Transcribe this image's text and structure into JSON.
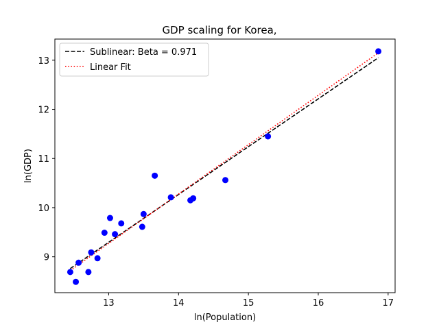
{
  "chart_data": {
    "type": "scatter",
    "title": "GDP scaling for Korea,",
    "xlabel": "ln(Population)",
    "ylabel": "ln(GDP)",
    "xlim": [
      12.23,
      17.1
    ],
    "ylim": [
      8.27,
      13.43
    ],
    "xticks": [
      13,
      14,
      15,
      16,
      17
    ],
    "yticks": [
      9,
      10,
      11,
      12,
      13
    ],
    "legend_position": "top-left",
    "grid": false,
    "points": [
      {
        "x": 12.45,
        "y": 8.69
      },
      {
        "x": 12.53,
        "y": 8.49
      },
      {
        "x": 12.57,
        "y": 8.88
      },
      {
        "x": 12.71,
        "y": 8.69
      },
      {
        "x": 12.75,
        "y": 9.09
      },
      {
        "x": 12.84,
        "y": 8.97
      },
      {
        "x": 12.94,
        "y": 9.49
      },
      {
        "x": 13.02,
        "y": 9.79
      },
      {
        "x": 13.09,
        "y": 9.46
      },
      {
        "x": 13.18,
        "y": 9.68
      },
      {
        "x": 13.48,
        "y": 9.61
      },
      {
        "x": 13.5,
        "y": 9.87
      },
      {
        "x": 13.66,
        "y": 10.65
      },
      {
        "x": 13.89,
        "y": 10.21
      },
      {
        "x": 14.17,
        "y": 10.15
      },
      {
        "x": 14.21,
        "y": 10.19
      },
      {
        "x": 14.67,
        "y": 10.56
      },
      {
        "x": 15.28,
        "y": 11.45
      },
      {
        "x": 16.86,
        "y": 13.18
      }
    ],
    "series": [
      {
        "name": "Sublinear: Beta = 0.971",
        "style": "dashed",
        "color": "#000000",
        "x": [
          12.45,
          16.86
        ],
        "y": [
          8.76,
          13.05
        ]
      },
      {
        "name": "Linear Fit",
        "style": "dotted",
        "color": "#ff0000",
        "x": [
          12.45,
          16.86
        ],
        "y": [
          8.72,
          13.15
        ]
      }
    ],
    "point_color": "#0000ff"
  }
}
